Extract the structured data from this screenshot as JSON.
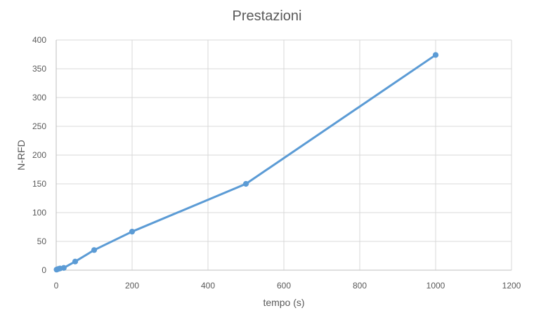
{
  "chart_data": {
    "type": "line",
    "title": "Prestazioni",
    "xlabel": "tempo (s)",
    "ylabel": "N-RFD",
    "xlim": [
      0,
      1200
    ],
    "ylim": [
      0,
      400
    ],
    "x_ticks": [
      0,
      200,
      400,
      600,
      800,
      1000,
      1200
    ],
    "y_ticks": [
      0,
      50,
      100,
      150,
      200,
      250,
      300,
      350,
      400
    ],
    "grid": true,
    "legend": "none",
    "series": [
      {
        "color": "#5b9bd5",
        "points": [
          {
            "x": 1,
            "y": 1
          },
          {
            "x": 5,
            "y": 2
          },
          {
            "x": 10,
            "y": 3
          },
          {
            "x": 20,
            "y": 4
          },
          {
            "x": 50,
            "y": 15
          },
          {
            "x": 100,
            "y": 35
          },
          {
            "x": 200,
            "y": 67
          },
          {
            "x": 500,
            "y": 150
          },
          {
            "x": 1000,
            "y": 374
          }
        ]
      }
    ]
  }
}
